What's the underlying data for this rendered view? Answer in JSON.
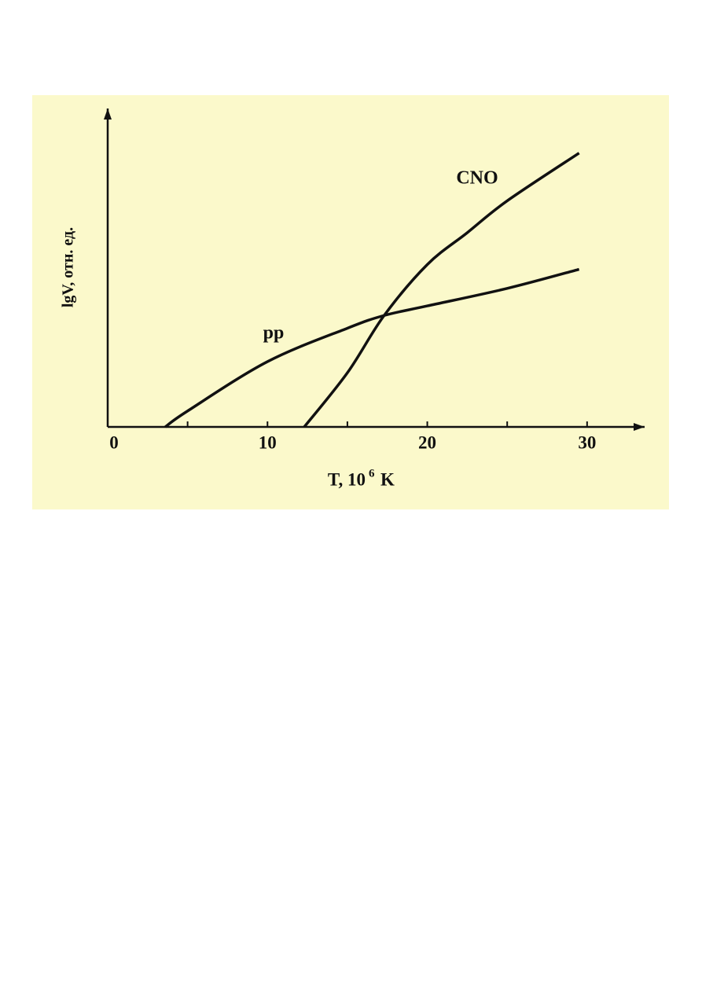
{
  "chart_data": {
    "type": "line",
    "y_label": "lgV, отн. ед.",
    "x_label": "T, 10",
    "x_label_exponent": "6",
    "x_label_unit": "K",
    "xlim": [
      0,
      33.6
    ],
    "ylim": [
      0,
      10
    ],
    "xticks": [
      0,
      10,
      20,
      30
    ],
    "xminor_ticks": [
      5,
      15,
      25
    ],
    "background": "#fbf9cb",
    "series": [
      {
        "name": "pp",
        "color": "#111111",
        "x": [
          3.6,
          5,
          10,
          15,
          17.3,
          20,
          25,
          29.5
        ],
        "values": [
          0,
          0.5,
          2.05,
          3.1,
          3.5,
          3.8,
          4.35,
          4.95
        ]
      },
      {
        "name": "CNO",
        "color": "#111111",
        "x": [
          12.3,
          15,
          17.3,
          20,
          22.5,
          25,
          29.5
        ],
        "values": [
          0,
          1.7,
          3.5,
          5.1,
          6.1,
          7.1,
          8.6
        ]
      }
    ]
  }
}
